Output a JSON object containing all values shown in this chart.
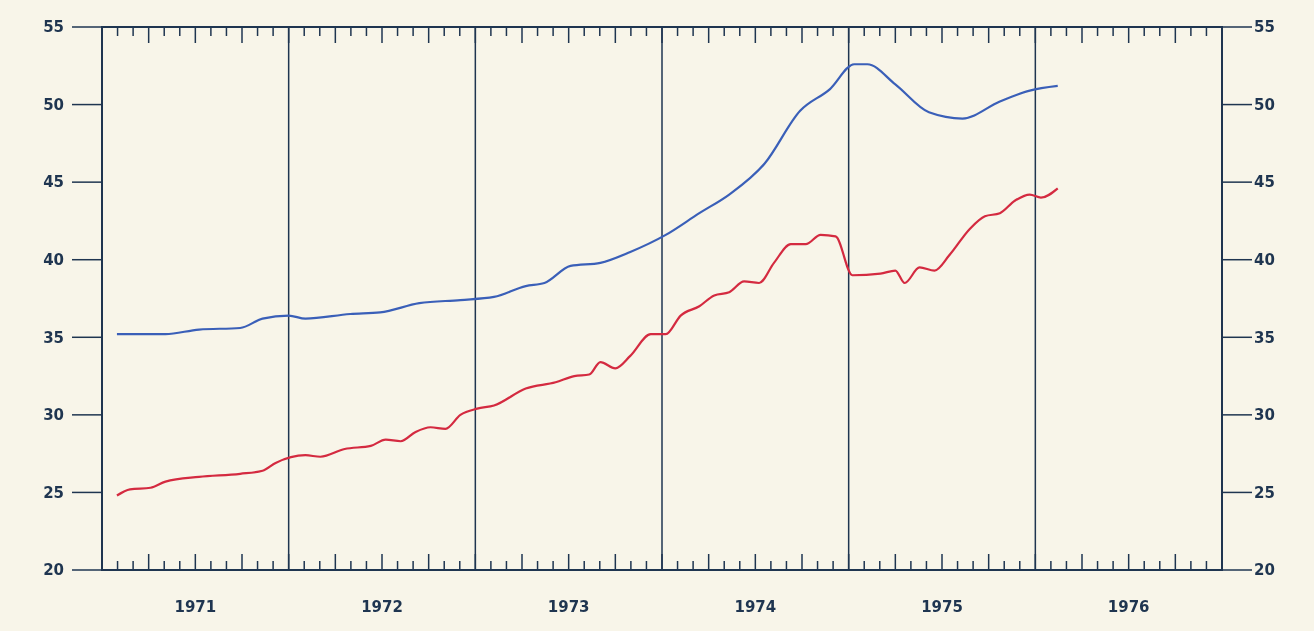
{
  "chart_data": {
    "type": "line",
    "xlim": [
      1971,
      1977
    ],
    "xticks": [
      {
        "value": 1971.5,
        "label": "1971"
      },
      {
        "value": 1972.5,
        "label": "1972"
      },
      {
        "value": 1973.5,
        "label": "1973"
      },
      {
        "value": 1974.5,
        "label": "1974"
      },
      {
        "value": 1975.5,
        "label": "1975"
      },
      {
        "value": 1976.5,
        "label": "1976"
      }
    ],
    "ylim": [
      20,
      55
    ],
    "yticks": [
      20,
      25,
      30,
      35,
      40,
      45,
      50,
      55
    ],
    "y2lim": [
      20,
      55
    ],
    "y2ticks": [
      20,
      25,
      30,
      35,
      40,
      45,
      50,
      55
    ],
    "ref_lines": [
      {
        "axis": "x",
        "value": 1972,
        "color": "#1f3550"
      },
      {
        "axis": "x",
        "value": 1973,
        "color": "#1f3550"
      },
      {
        "axis": "x",
        "value": 1974,
        "color": "#1f3550"
      },
      {
        "axis": "x",
        "value": 1975,
        "color": "#1f3550"
      },
      {
        "axis": "x",
        "value": 1976,
        "color": "#1f3550"
      }
    ],
    "grid": false,
    "marker": "none",
    "line_style": "solid",
    "series": [
      {
        "color": "#3a5fb8",
        "x": [
          1971.08,
          1971.34,
          1971.52,
          1971.74,
          1971.86,
          1972.0,
          1972.09,
          1972.33,
          1972.49,
          1972.7,
          1972.92,
          1973.1,
          1973.27,
          1973.37,
          1973.51,
          1973.67,
          1973.83,
          1974.02,
          1974.2,
          1974.36,
          1974.55,
          1974.74,
          1974.9,
          1975.03,
          1975.1,
          1975.25,
          1975.43,
          1975.61,
          1975.81,
          1975.97,
          1976.12
        ],
        "values": [
          35.2,
          35.2,
          35.5,
          35.6,
          36.2,
          36.4,
          36.2,
          36.5,
          36.6,
          37.2,
          37.4,
          37.6,
          38.3,
          38.5,
          39.6,
          39.8,
          40.5,
          41.6,
          43.0,
          44.2,
          46.2,
          49.6,
          51.0,
          52.6,
          52.6,
          51.3,
          49.5,
          49.1,
          50.2,
          50.9,
          51.2
        ]
      },
      {
        "color": "#d42a40",
        "x": [
          1971.08,
          1971.15,
          1971.26,
          1971.34,
          1971.52,
          1971.74,
          1971.86,
          1971.93,
          1972.09,
          1972.17,
          1972.3,
          1972.44,
          1972.52,
          1972.6,
          1972.68,
          1972.76,
          1972.84,
          1972.92,
          1973.01,
          1973.1,
          1973.27,
          1973.43,
          1973.53,
          1973.61,
          1973.67,
          1973.75,
          1973.83,
          1973.94,
          1974.02,
          1974.1,
          1974.2,
          1974.28,
          1974.36,
          1974.44,
          1974.52,
          1974.6,
          1974.69,
          1974.77,
          1974.85,
          1974.93,
          1975.02,
          1975.17,
          1975.25,
          1975.3,
          1975.38,
          1975.46,
          1975.54,
          1975.65,
          1975.73,
          1975.81,
          1975.89,
          1975.97,
          1976.03,
          1976.12
        ],
        "values": [
          24.8,
          25.2,
          25.3,
          25.7,
          26.0,
          26.2,
          26.4,
          26.9,
          27.4,
          27.3,
          27.8,
          28.0,
          28.4,
          28.3,
          28.9,
          29.2,
          29.1,
          30.0,
          30.4,
          30.6,
          31.7,
          32.1,
          32.5,
          32.6,
          33.4,
          33.0,
          33.8,
          35.2,
          35.2,
          36.4,
          37.0,
          37.7,
          37.9,
          38.6,
          38.5,
          39.8,
          41.0,
          41.0,
          41.6,
          41.5,
          39.0,
          39.1,
          39.3,
          38.5,
          39.5,
          39.3,
          40.3,
          42.0,
          42.8,
          43.0,
          43.8,
          44.2,
          44.0,
          44.6
        ]
      }
    ]
  }
}
